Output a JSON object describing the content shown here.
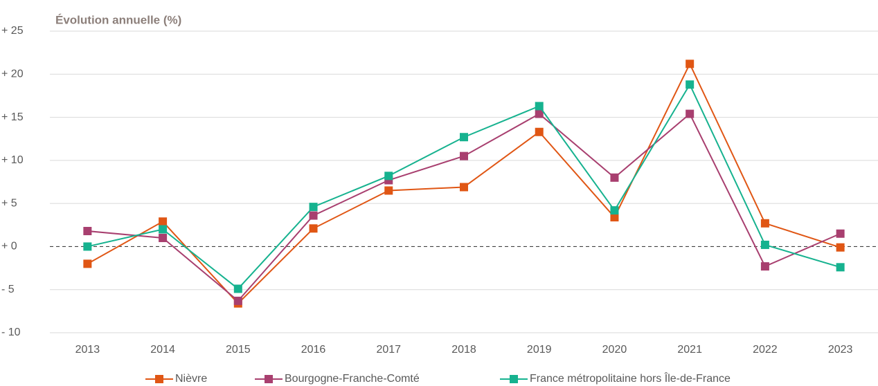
{
  "chart_data": {
    "type": "line",
    "title": "Évolution annuelle (%)",
    "categories": [
      "2013",
      "2014",
      "2015",
      "2016",
      "2017",
      "2018",
      "2019",
      "2020",
      "2021",
      "2022",
      "2023"
    ],
    "series": [
      {
        "name": "Nièvre",
        "color": "#e05614",
        "values": [
          -2.0,
          2.9,
          -6.6,
          2.1,
          6.5,
          6.9,
          13.3,
          3.4,
          21.2,
          2.7,
          -0.1
        ]
      },
      {
        "name": "Bourgogne-Franche-Comté",
        "color": "#a83f6f",
        "values": [
          1.8,
          1.0,
          -6.3,
          3.6,
          7.7,
          10.5,
          15.4,
          8.0,
          15.4,
          -2.3,
          1.5
        ]
      },
      {
        "name": "France métropolitaine hors Île-de-France",
        "color": "#16b28f",
        "values": [
          0.0,
          2.0,
          -4.9,
          4.6,
          8.2,
          12.7,
          16.3,
          4.2,
          18.8,
          0.2,
          -2.4
        ]
      }
    ],
    "ylim": [
      -10,
      25
    ],
    "yticks": [
      {
        "value": -10,
        "label": "- 10"
      },
      {
        "value": -5,
        "label": "- 5"
      },
      {
        "value": 0,
        "label": "+ 0"
      },
      {
        "value": 5,
        "label": "+ 5"
      },
      {
        "value": 10,
        "label": "+ 10"
      },
      {
        "value": 15,
        "label": "+ 15"
      },
      {
        "value": 20,
        "label": "+ 20"
      },
      {
        "value": 25,
        "label": "+ 25"
      }
    ],
    "grid": true,
    "legend": "bottom"
  }
}
